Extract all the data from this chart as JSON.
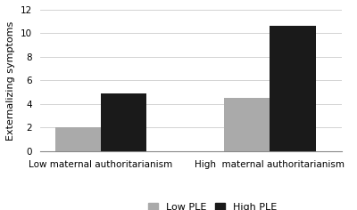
{
  "groups": [
    "Low maternal authoritarianism",
    "High  maternal authoritarianism"
  ],
  "low_ple_values": [
    2.0,
    4.5
  ],
  "high_ple_values": [
    4.9,
    10.6
  ],
  "low_ple_color": "#aaaaaa",
  "high_ple_color": "#1a1a1a",
  "ylabel": "Externalizing symptoms",
  "ylim": [
    0,
    12
  ],
  "yticks": [
    0,
    2,
    4,
    6,
    8,
    10,
    12
  ],
  "legend_labels": [
    "Low PLE",
    "High PLE"
  ],
  "bar_width": 0.38,
  "group_positions": [
    1.0,
    2.4
  ],
  "xlim": [
    0.5,
    3.0
  ],
  "background_color": "#ffffff",
  "ylabel_fontsize": 8,
  "tick_fontsize": 7.5,
  "legend_fontsize": 8
}
